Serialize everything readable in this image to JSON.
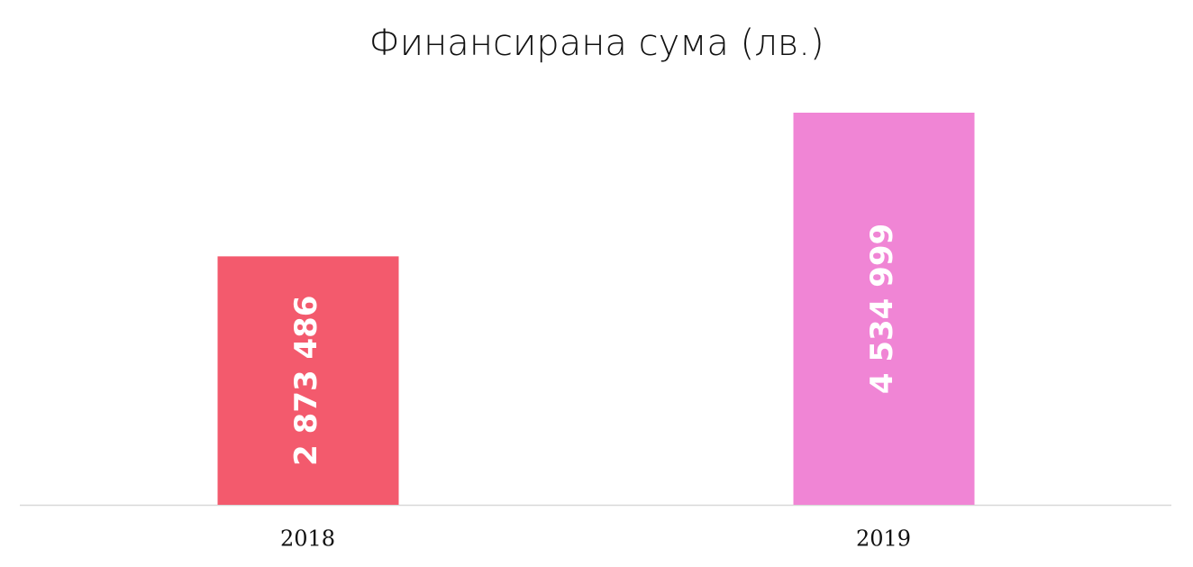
{
  "chart_data": {
    "type": "bar",
    "title": "Финансирана сума (лв.)",
    "categories": [
      "2018",
      "2019"
    ],
    "values": [
      2873486,
      4534999
    ],
    "value_labels": [
      "2 873 486",
      "4 534 999"
    ],
    "colors": [
      "#f35a6d",
      "#f085d5"
    ]
  }
}
